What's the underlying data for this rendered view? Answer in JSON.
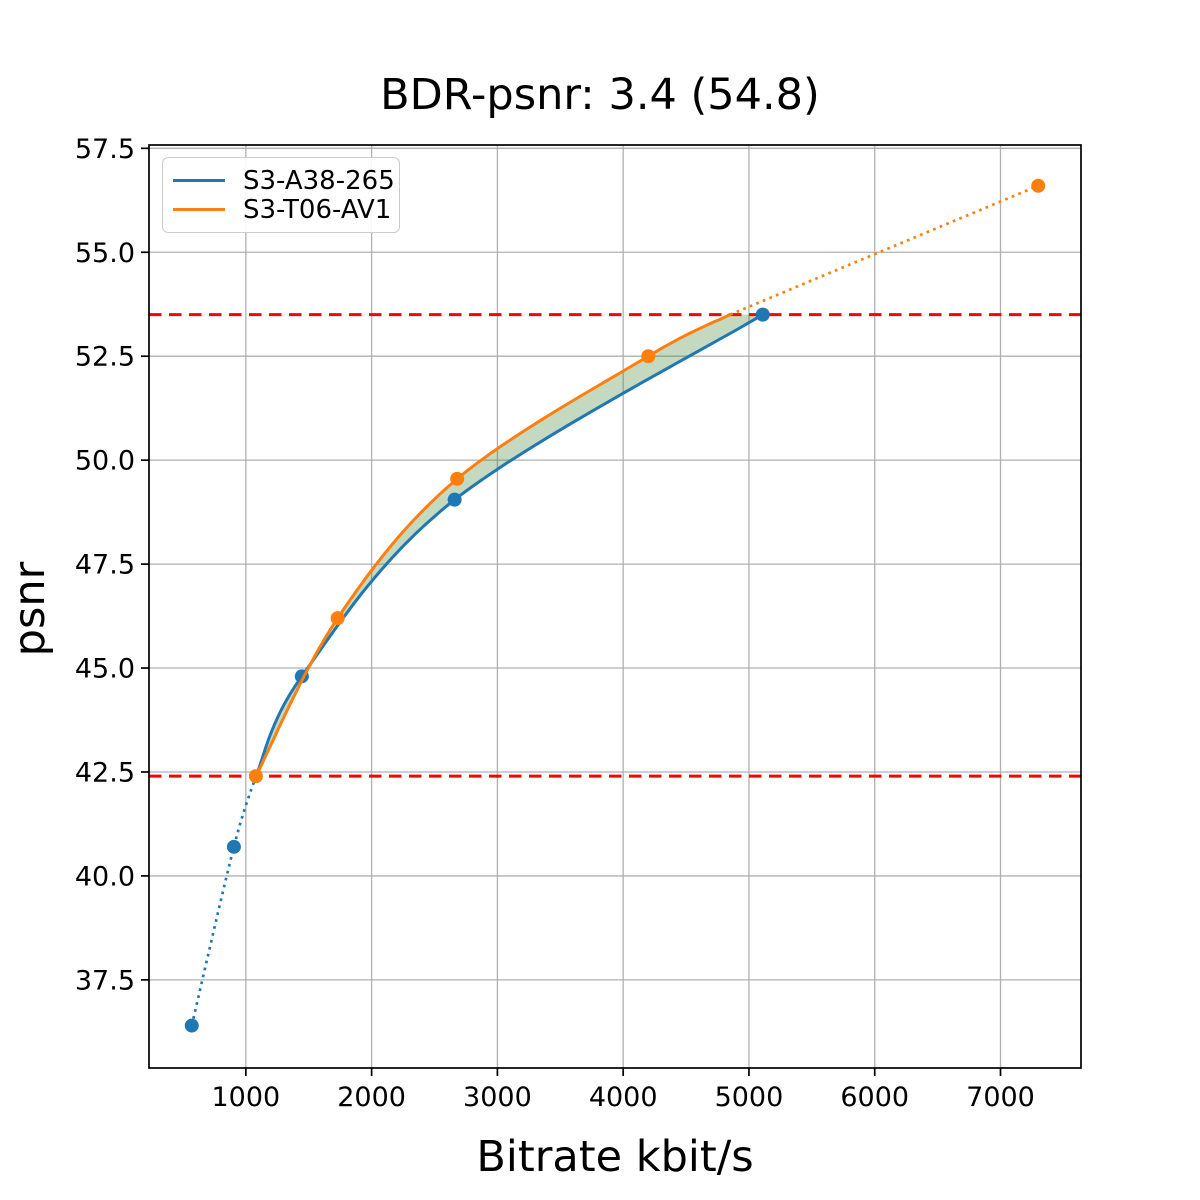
{
  "title": "BDR-psnr: 3.4 (54.8)",
  "chart_data": {
    "type": "line",
    "title": "BDR-psnr: 3.4 (54.8)",
    "xlabel": "Bitrate kbit/s",
    "ylabel": "psnr",
    "xlim": [
      230,
      7640
    ],
    "ylim": [
      35.38,
      57.58
    ],
    "x_ticks": [
      1000,
      2000,
      3000,
      4000,
      5000,
      6000,
      7000
    ],
    "y_ticks": [
      57.5,
      55.0,
      52.5,
      50.0,
      47.5,
      45.0,
      42.5,
      40.0,
      37.5
    ],
    "grid": true,
    "legend_position": "upper left",
    "series": [
      {
        "name": "S3-A38-265",
        "color": "#1f77b4",
        "points": [
          [
            570,
            36.4
          ],
          [
            905,
            40.7
          ],
          [
            1445,
            44.8
          ],
          [
            2660,
            49.05
          ],
          [
            5110,
            53.5
          ]
        ],
        "solid_knots": [
          [
            1080,
            42.4
          ],
          [
            1445,
            44.8
          ],
          [
            2660,
            49.05
          ],
          [
            5110,
            53.5
          ]
        ],
        "dotted_knots": [
          [
            570,
            36.4
          ],
          [
            905,
            40.7
          ],
          [
            1080,
            42.4
          ]
        ]
      },
      {
        "name": "S3-T06-AV1",
        "color": "#ff7f0e",
        "points": [
          [
            1080,
            42.4
          ],
          [
            1730,
            46.2
          ],
          [
            2680,
            49.55
          ],
          [
            4200,
            52.5
          ],
          [
            7300,
            56.6
          ]
        ],
        "solid_knots": [
          [
            1080,
            42.4
          ],
          [
            1730,
            46.2
          ],
          [
            2680,
            49.55
          ],
          [
            4200,
            52.5
          ],
          [
            4850,
            53.5
          ]
        ],
        "dotted_knots": [
          [
            4850,
            53.5
          ],
          [
            7300,
            56.6
          ]
        ]
      }
    ],
    "reference_lines": [
      {
        "y": 42.4,
        "color": "#ff0000",
        "style": "dashed"
      },
      {
        "y": 53.5,
        "color": "#ff0000",
        "style": "dashed"
      }
    ],
    "shaded_region": {
      "color": "rgba(70, 138, 56, 0.32)",
      "description": "area between solid segments of the two curves",
      "bridge_point": [
        5110,
        53.5
      ]
    },
    "grid_color": "#b0b0b0",
    "spine_color": "#000000"
  }
}
